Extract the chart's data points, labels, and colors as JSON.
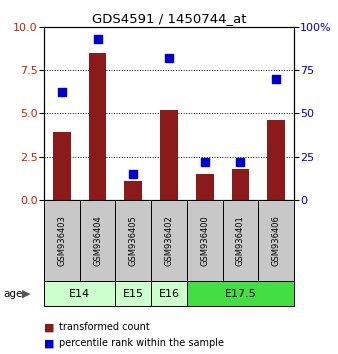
{
  "title": "GDS4591 / 1450744_at",
  "samples": [
    "GSM936403",
    "GSM936404",
    "GSM936405",
    "GSM936402",
    "GSM936400",
    "GSM936401",
    "GSM936406"
  ],
  "transformed_counts": [
    3.9,
    8.5,
    1.1,
    5.2,
    1.5,
    1.8,
    4.6
  ],
  "percentile_ranks": [
    62,
    93,
    15,
    82,
    22,
    22,
    70
  ],
  "ylim_left": [
    0,
    10
  ],
  "ylim_right": [
    0,
    100
  ],
  "yticks_left": [
    0,
    2.5,
    5,
    7.5,
    10
  ],
  "yticks_right": [
    0,
    25,
    50,
    75,
    100
  ],
  "bar_color": "#8B1A1A",
  "dot_color": "#0000CC",
  "age_group_spans": [
    {
      "label": "E14",
      "start": 0,
      "end": 1,
      "color": "#CCFFCC"
    },
    {
      "label": "E15",
      "start": 2,
      "end": 2,
      "color": "#CCFFCC"
    },
    {
      "label": "E16",
      "start": 3,
      "end": 3,
      "color": "#CCFFCC"
    },
    {
      "label": "E17.5",
      "start": 4,
      "end": 6,
      "color": "#44DD44"
    }
  ],
  "sample_box_color": "#C8C8C8",
  "tick_label_color_left": "#CC2200",
  "tick_label_color_right": "#0000CC",
  "bar_width": 0.5,
  "dot_size": 30
}
